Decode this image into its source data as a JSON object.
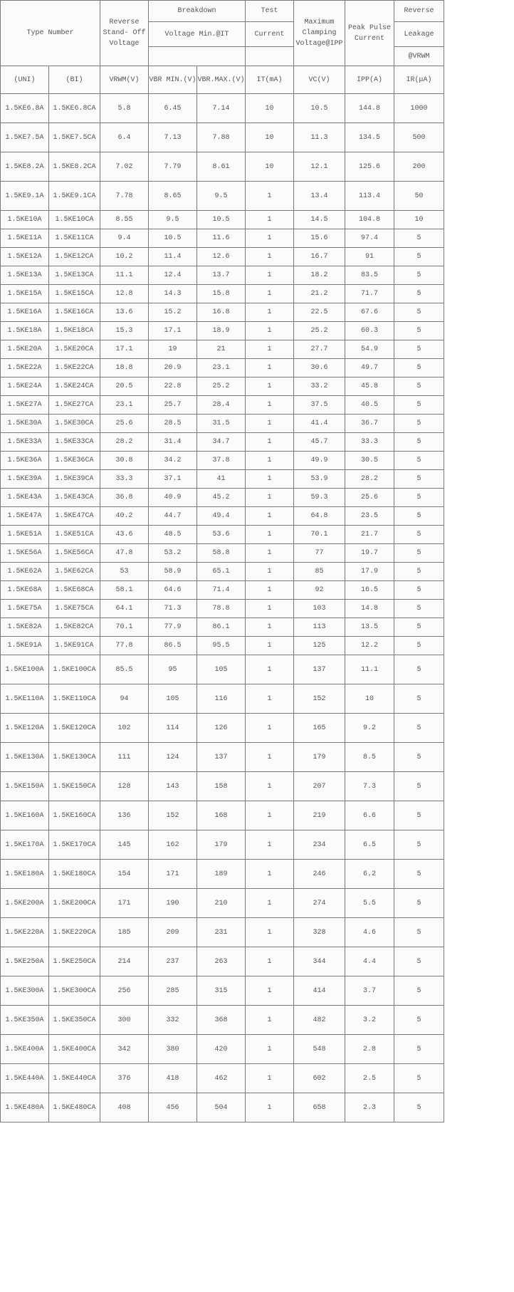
{
  "header": {
    "type_number": "Type Number",
    "reverse_standoff": [
      "Reverse",
      "Stand- Off",
      "Voltage"
    ],
    "breakdown": "Breakdown",
    "breakdown_sub": "Voltage Min.@IT",
    "test": "Test",
    "test_sub": "Current",
    "max_clamping": [
      "Maximum",
      "Clamping",
      "Voltage@IPP"
    ],
    "peak_pulse": [
      "Peak Pulse",
      "Current"
    ],
    "reverse": "Reverse",
    "leakage": "Leakage",
    "at_vrwm": "@VRWM",
    "units": [
      "(UNI)",
      "(BI)",
      "VRWM(V)",
      "VBR MIN.(V)",
      "VBR.MAX.(V)",
      "IT(mA)",
      "VC(V)",
      "IPP(A)",
      "IR(μA)"
    ]
  },
  "rows": [
    [
      "1.5KE6.8A",
      "1.5KE6.8CA",
      "5.8",
      "6.45",
      "7.14",
      "10",
      "10.5",
      "144.8",
      "1000"
    ],
    [
      "1.5KE7.5A",
      "1.5KE7.5CA",
      "6.4",
      "7.13",
      "7.88",
      "10",
      "11.3",
      "134.5",
      "500"
    ],
    [
      "1.5KE8.2A",
      "1.5KE8.2CA",
      "7.02",
      "7.79",
      "8.61",
      "10",
      "12.1",
      "125.6",
      "200"
    ],
    [
      "1.5KE9.1A",
      "1.5KE9.1CA",
      "7.78",
      "8.65",
      "9.5",
      "1",
      "13.4",
      "113.4",
      "50"
    ],
    [
      "1.5KE10A",
      "1.5KE10CA",
      "8.55",
      "9.5",
      "10.5",
      "1",
      "14.5",
      "104.8",
      "10"
    ],
    [
      "1.5KE11A",
      "1.5KE11CA",
      "9.4",
      "10.5",
      "11.6",
      "1",
      "15.6",
      "97.4",
      "5"
    ],
    [
      "1.5KE12A",
      "1.5KE12CA",
      "10.2",
      "11.4",
      "12.6",
      "1",
      "16.7",
      "91",
      "5"
    ],
    [
      "1.5KE13A",
      "1.5KE13CA",
      "11.1",
      "12.4",
      "13.7",
      "1",
      "18.2",
      "83.5",
      "5"
    ],
    [
      "1.5KE15A",
      "1.5KE15CA",
      "12.8",
      "14.3",
      "15.8",
      "1",
      "21.2",
      "71.7",
      "5"
    ],
    [
      "1.5KE16A",
      "1.5KE16CA",
      "13.6",
      "15.2",
      "16.8",
      "1",
      "22.5",
      "67.6",
      "5"
    ],
    [
      "1.5KE18A",
      "1.5KE18CA",
      "15.3",
      "17.1",
      "18.9",
      "1",
      "25.2",
      "60.3",
      "5"
    ],
    [
      "1.5KE20A",
      "1.5KE20CA",
      "17.1",
      "19",
      "21",
      "1",
      "27.7",
      "54.9",
      "5"
    ],
    [
      "1.5KE22A",
      "1.5KE22CA",
      "18.8",
      "20.9",
      "23.1",
      "1",
      "30.6",
      "49.7",
      "5"
    ],
    [
      "1.5KE24A",
      "1.5KE24CA",
      "20.5",
      "22.8",
      "25.2",
      "1",
      "33.2",
      "45.8",
      "5"
    ],
    [
      "1.5KE27A",
      "1.5KE27CA",
      "23.1",
      "25.7",
      "28.4",
      "1",
      "37.5",
      "40.5",
      "5"
    ],
    [
      "1.5KE30A",
      "1.5KE30CA",
      "25.6",
      "28.5",
      "31.5",
      "1",
      "41.4",
      "36.7",
      "5"
    ],
    [
      "1.5KE33A",
      "1.5KE33CA",
      "28.2",
      "31.4",
      "34.7",
      "1",
      "45.7",
      "33.3",
      "5"
    ],
    [
      "1.5KE36A",
      "1.5KE36CA",
      "30.8",
      "34.2",
      "37.8",
      "1",
      "49.9",
      "30.5",
      "5"
    ],
    [
      "1.5KE39A",
      "1.5KE39CA",
      "33.3",
      "37.1",
      "41",
      "1",
      "53.9",
      "28.2",
      "5"
    ],
    [
      "1.5KE43A",
      "1.5KE43CA",
      "36.8",
      "40.9",
      "45.2",
      "1",
      "59.3",
      "25.6",
      "5"
    ],
    [
      "1.5KE47A",
      "1.5KE47CA",
      "40.2",
      "44.7",
      "49.4",
      "1",
      "64.8",
      "23.5",
      "5"
    ],
    [
      "1.5KE51A",
      "1.5KE51CA",
      "43.6",
      "48.5",
      "53.6",
      "1",
      "70.1",
      "21.7",
      "5"
    ],
    [
      "1.5KE56A",
      "1.5KE56CA",
      "47.8",
      "53.2",
      "58.8",
      "1",
      "77",
      "19.7",
      "5"
    ],
    [
      "1.5KE62A",
      "1.5KE62CA",
      "53",
      "58.9",
      "65.1",
      "1",
      "85",
      "17.9",
      "5"
    ],
    [
      "1.5KE68A",
      "1.5KE68CA",
      "58.1",
      "64.6",
      "71.4",
      "1",
      "92",
      "16.5",
      "5"
    ],
    [
      "1.5KE75A",
      "1.5KE75CA",
      "64.1",
      "71.3",
      "78.8",
      "1",
      "103",
      "14.8",
      "5"
    ],
    [
      "1.5KE82A",
      "1.5KE82CA",
      "70.1",
      "77.9",
      "86.1",
      "1",
      "113",
      "13.5",
      "5"
    ],
    [
      "1.5KE91A",
      "1.5KE91CA",
      "77.8",
      "86.5",
      "95.5",
      "1",
      "125",
      "12.2",
      "5"
    ],
    [
      "1.5KE100A",
      "1.5KE100CA",
      "85.5",
      "95",
      "105",
      "1",
      "137",
      "11.1",
      "5"
    ],
    [
      "1.5KE110A",
      "1.5KE110CA",
      "94",
      "105",
      "116",
      "1",
      "152",
      "10",
      "5"
    ],
    [
      "1.5KE120A",
      "1.5KE120CA",
      "102",
      "114",
      "126",
      "1",
      "165",
      "9.2",
      "5"
    ],
    [
      "1.5KE130A",
      "1.5KE130CA",
      "111",
      "124",
      "137",
      "1",
      "179",
      "8.5",
      "5"
    ],
    [
      "1.5KE150A",
      "1.5KE150CA",
      "128",
      "143",
      "158",
      "1",
      "207",
      "7.3",
      "5"
    ],
    [
      "1.5KE160A",
      "1.5KE160CA",
      "136",
      "152",
      "168",
      "1",
      "219",
      "6.6",
      "5"
    ],
    [
      "1.5KE170A",
      "1.5KE170CA",
      "145",
      "162",
      "179",
      "1",
      "234",
      "6.5",
      "5"
    ],
    [
      "1.5KE180A",
      "1.5KE180CA",
      "154",
      "171",
      "189",
      "1",
      "246",
      "6.2",
      "5"
    ],
    [
      "1.5KE200A",
      "1.5KE200CA",
      "171",
      "190",
      "210",
      "1",
      "274",
      "5.5",
      "5"
    ],
    [
      "1.5KE220A",
      "1.5KE220CA",
      "185",
      "209",
      "231",
      "1",
      "328",
      "4.6",
      "5"
    ],
    [
      "1.5KE250A",
      "1.5KE250CA",
      "214",
      "237",
      "263",
      "1",
      "344",
      "4.4",
      "5"
    ],
    [
      "1.5KE300A",
      "1.5KE300CA",
      "256",
      "285",
      "315",
      "1",
      "414",
      "3.7",
      "5"
    ],
    [
      "1.5KE350A",
      "1.5KE350CA",
      "300",
      "332",
      "368",
      "1",
      "482",
      "3.2",
      "5"
    ],
    [
      "1.5KE400A",
      "1.5KE400CA",
      "342",
      "380",
      "420",
      "1",
      "548",
      "2.8",
      "5"
    ],
    [
      "1.5KE440A",
      "1.5KE440CA",
      "376",
      "418",
      "462",
      "1",
      "602",
      "2.5",
      "5"
    ],
    [
      "1.5KE480A",
      "1.5KE480CA",
      "408",
      "456",
      "504",
      "1",
      "658",
      "2.3",
      "5"
    ]
  ]
}
